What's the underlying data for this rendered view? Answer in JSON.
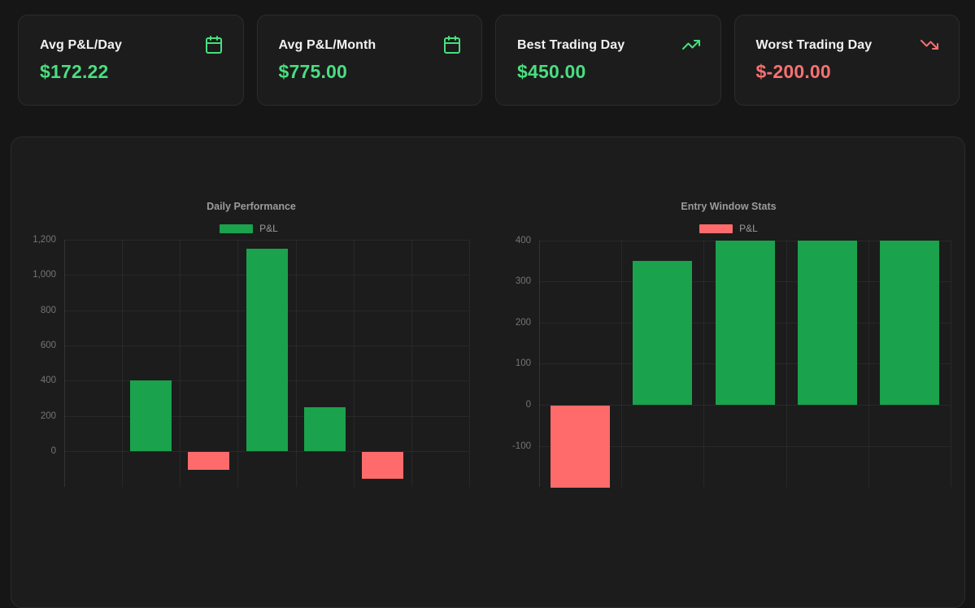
{
  "stat_cards": [
    {
      "label": "Avg P&L/Day",
      "value": "$172.22",
      "icon": "calendar-icon",
      "sentiment": "positive"
    },
    {
      "label": "Avg P&L/Month",
      "value": "$775.00",
      "icon": "calendar-icon",
      "sentiment": "positive"
    },
    {
      "label": "Best Trading Day",
      "value": "$450.00",
      "icon": "trending-up-icon",
      "sentiment": "positive"
    },
    {
      "label": "Worst Trading Day",
      "value": "$-200.00",
      "icon": "trending-down-icon",
      "sentiment": "negative"
    }
  ],
  "colors": {
    "page_background": "#161616",
    "card_background": "#1c1c1c",
    "card_border": "#2c2c2c",
    "positive_text": "#4ade80",
    "negative_text": "#f87171",
    "bar_positive": "#1aa24c",
    "bar_negative": "#ff6b6b",
    "chart_text": "#9b9b9b",
    "tick_text": "#757575"
  },
  "chart_data": [
    {
      "type": "bar",
      "title": "Daily Performance",
      "legend_label": "P&L",
      "legend_color": "#1aa24c",
      "legend_position": "top",
      "grid": true,
      "values": [
        0,
        400,
        -100,
        1150,
        250,
        -150,
        0
      ],
      "ylim": [
        -200,
        1200
      ],
      "yticks": [
        1200,
        1000,
        800,
        600,
        400,
        200,
        0
      ],
      "positive_color": "#1aa24c",
      "negative_color": "#ff6b6b"
    },
    {
      "type": "bar",
      "title": "Entry Window Stats",
      "legend_label": "P&L",
      "legend_color": "#ff6b6b",
      "legend_position": "top",
      "grid": true,
      "values": [
        -200,
        350,
        400,
        400,
        400
      ],
      "ylim": [
        -200,
        400
      ],
      "yticks": [
        400,
        300,
        200,
        100,
        0,
        -100
      ],
      "positive_color": "#1aa24c",
      "negative_color": "#ff6b6b"
    }
  ]
}
